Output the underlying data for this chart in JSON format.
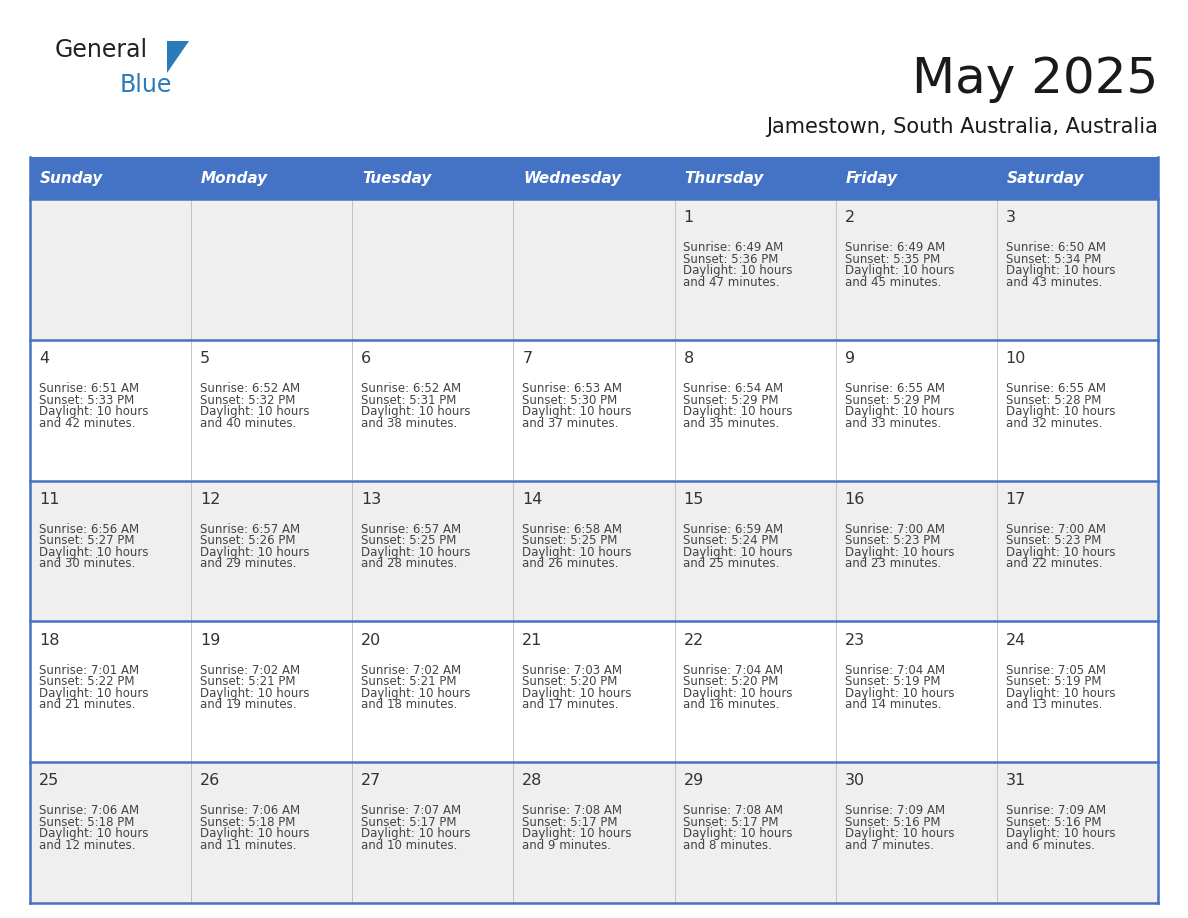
{
  "title": "May 2025",
  "subtitle": "Jamestown, South Australia, Australia",
  "days_of_week": [
    "Sunday",
    "Monday",
    "Tuesday",
    "Wednesday",
    "Thursday",
    "Friday",
    "Saturday"
  ],
  "header_bg": "#4472C4",
  "header_text": "#FFFFFF",
  "cell_bg_light": "#EFEFEF",
  "cell_bg_white": "#FFFFFF",
  "border_color": "#4472C4",
  "text_color": "#444444",
  "num_color": "#333333",
  "calendar": [
    [
      null,
      null,
      null,
      null,
      {
        "day": 1,
        "sunrise": "6:49 AM",
        "sunset": "5:36 PM",
        "daylight": "10 hours and 47 minutes"
      },
      {
        "day": 2,
        "sunrise": "6:49 AM",
        "sunset": "5:35 PM",
        "daylight": "10 hours and 45 minutes"
      },
      {
        "day": 3,
        "sunrise": "6:50 AM",
        "sunset": "5:34 PM",
        "daylight": "10 hours and 43 minutes"
      }
    ],
    [
      {
        "day": 4,
        "sunrise": "6:51 AM",
        "sunset": "5:33 PM",
        "daylight": "10 hours and 42 minutes"
      },
      {
        "day": 5,
        "sunrise": "6:52 AM",
        "sunset": "5:32 PM",
        "daylight": "10 hours and 40 minutes"
      },
      {
        "day": 6,
        "sunrise": "6:52 AM",
        "sunset": "5:31 PM",
        "daylight": "10 hours and 38 minutes"
      },
      {
        "day": 7,
        "sunrise": "6:53 AM",
        "sunset": "5:30 PM",
        "daylight": "10 hours and 37 minutes"
      },
      {
        "day": 8,
        "sunrise": "6:54 AM",
        "sunset": "5:29 PM",
        "daylight": "10 hours and 35 minutes"
      },
      {
        "day": 9,
        "sunrise": "6:55 AM",
        "sunset": "5:29 PM",
        "daylight": "10 hours and 33 minutes"
      },
      {
        "day": 10,
        "sunrise": "6:55 AM",
        "sunset": "5:28 PM",
        "daylight": "10 hours and 32 minutes"
      }
    ],
    [
      {
        "day": 11,
        "sunrise": "6:56 AM",
        "sunset": "5:27 PM",
        "daylight": "10 hours and 30 minutes"
      },
      {
        "day": 12,
        "sunrise": "6:57 AM",
        "sunset": "5:26 PM",
        "daylight": "10 hours and 29 minutes"
      },
      {
        "day": 13,
        "sunrise": "6:57 AM",
        "sunset": "5:25 PM",
        "daylight": "10 hours and 28 minutes"
      },
      {
        "day": 14,
        "sunrise": "6:58 AM",
        "sunset": "5:25 PM",
        "daylight": "10 hours and 26 minutes"
      },
      {
        "day": 15,
        "sunrise": "6:59 AM",
        "sunset": "5:24 PM",
        "daylight": "10 hours and 25 minutes"
      },
      {
        "day": 16,
        "sunrise": "7:00 AM",
        "sunset": "5:23 PM",
        "daylight": "10 hours and 23 minutes"
      },
      {
        "day": 17,
        "sunrise": "7:00 AM",
        "sunset": "5:23 PM",
        "daylight": "10 hours and 22 minutes"
      }
    ],
    [
      {
        "day": 18,
        "sunrise": "7:01 AM",
        "sunset": "5:22 PM",
        "daylight": "10 hours and 21 minutes"
      },
      {
        "day": 19,
        "sunrise": "7:02 AM",
        "sunset": "5:21 PM",
        "daylight": "10 hours and 19 minutes"
      },
      {
        "day": 20,
        "sunrise": "7:02 AM",
        "sunset": "5:21 PM",
        "daylight": "10 hours and 18 minutes"
      },
      {
        "day": 21,
        "sunrise": "7:03 AM",
        "sunset": "5:20 PM",
        "daylight": "10 hours and 17 minutes"
      },
      {
        "day": 22,
        "sunrise": "7:04 AM",
        "sunset": "5:20 PM",
        "daylight": "10 hours and 16 minutes"
      },
      {
        "day": 23,
        "sunrise": "7:04 AM",
        "sunset": "5:19 PM",
        "daylight": "10 hours and 14 minutes"
      },
      {
        "day": 24,
        "sunrise": "7:05 AM",
        "sunset": "5:19 PM",
        "daylight": "10 hours and 13 minutes"
      }
    ],
    [
      {
        "day": 25,
        "sunrise": "7:06 AM",
        "sunset": "5:18 PM",
        "daylight": "10 hours and 12 minutes"
      },
      {
        "day": 26,
        "sunrise": "7:06 AM",
        "sunset": "5:18 PM",
        "daylight": "10 hours and 11 minutes"
      },
      {
        "day": 27,
        "sunrise": "7:07 AM",
        "sunset": "5:17 PM",
        "daylight": "10 hours and 10 minutes"
      },
      {
        "day": 28,
        "sunrise": "7:08 AM",
        "sunset": "5:17 PM",
        "daylight": "10 hours and 9 minutes"
      },
      {
        "day": 29,
        "sunrise": "7:08 AM",
        "sunset": "5:17 PM",
        "daylight": "10 hours and 8 minutes"
      },
      {
        "day": 30,
        "sunrise": "7:09 AM",
        "sunset": "5:16 PM",
        "daylight": "10 hours and 7 minutes"
      },
      {
        "day": 31,
        "sunrise": "7:09 AM",
        "sunset": "5:16 PM",
        "daylight": "10 hours and 6 minutes"
      }
    ]
  ],
  "logo_text1": "General",
  "logo_text2": "Blue",
  "logo_color1": "#222222",
  "logo_color2": "#2B7BB9",
  "logo_triangle_color": "#2B7BB9",
  "title_color": "#1a1a1a",
  "subtitle_color": "#1a1a1a"
}
